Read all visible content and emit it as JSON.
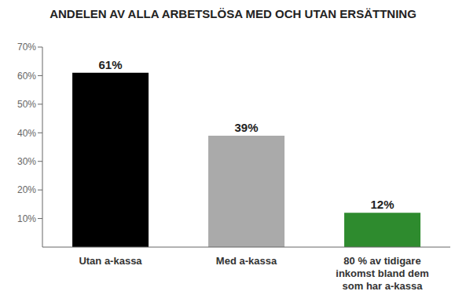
{
  "chart_data": {
    "type": "bar",
    "title": "ANDELEN AV ALLA ARBETSLÖSA MED OCH UTAN ERSÄTTNING",
    "categories": [
      "Utan a-kassa",
      "Med a-kassa",
      "80 % av tidigare\ninkomst bland dem\nsom har a-kassa"
    ],
    "values": [
      61,
      39,
      12
    ],
    "value_labels": [
      "61%",
      "39%",
      "12%"
    ],
    "data_labels": true,
    "colors": [
      "#000000",
      "#aaaaaa",
      "#2e8b2e"
    ],
    "ylim": [
      0,
      70
    ],
    "yticks": [
      {
        "value": 10,
        "label": "10%"
      },
      {
        "value": 20,
        "label": "20%"
      },
      {
        "value": 30,
        "label": "30%"
      },
      {
        "value": 40,
        "label": "40%"
      },
      {
        "value": 50,
        "label": "50%"
      },
      {
        "value": 60,
        "label": "60%"
      },
      {
        "value": 70,
        "label": "70%"
      }
    ],
    "grid": false
  }
}
